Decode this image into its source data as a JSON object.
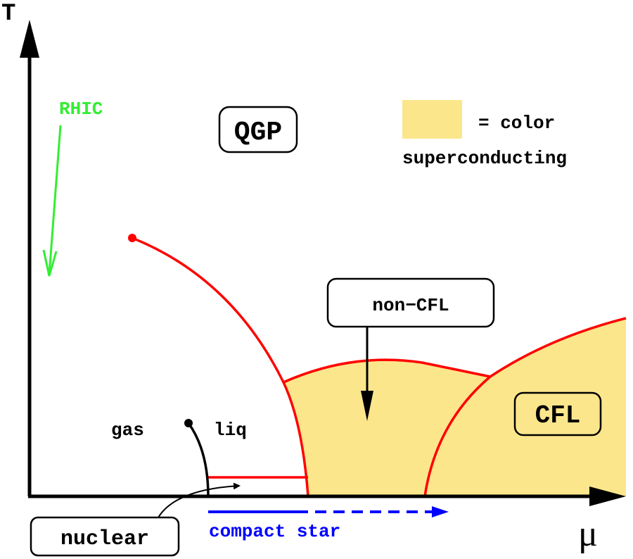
{
  "axes": {
    "y_label": "T",
    "x_label": "μ"
  },
  "labels": {
    "rhic": "RHIC",
    "qgp": "QGP",
    "legend_equals": "= color",
    "legend_line2": "superconducting",
    "non_cfl": "non−CFL",
    "cfl": "CFL",
    "gas": "gas",
    "liq": "liq",
    "nuclear": "nuclear",
    "compact_star": "compact star"
  },
  "colors": {
    "superconducting_fill": "#fce68c",
    "phase_boundary": "#ff0000",
    "rhic_arrow": "#33ee33",
    "compact_star": "#0000ff",
    "axes": "#000000"
  }
}
